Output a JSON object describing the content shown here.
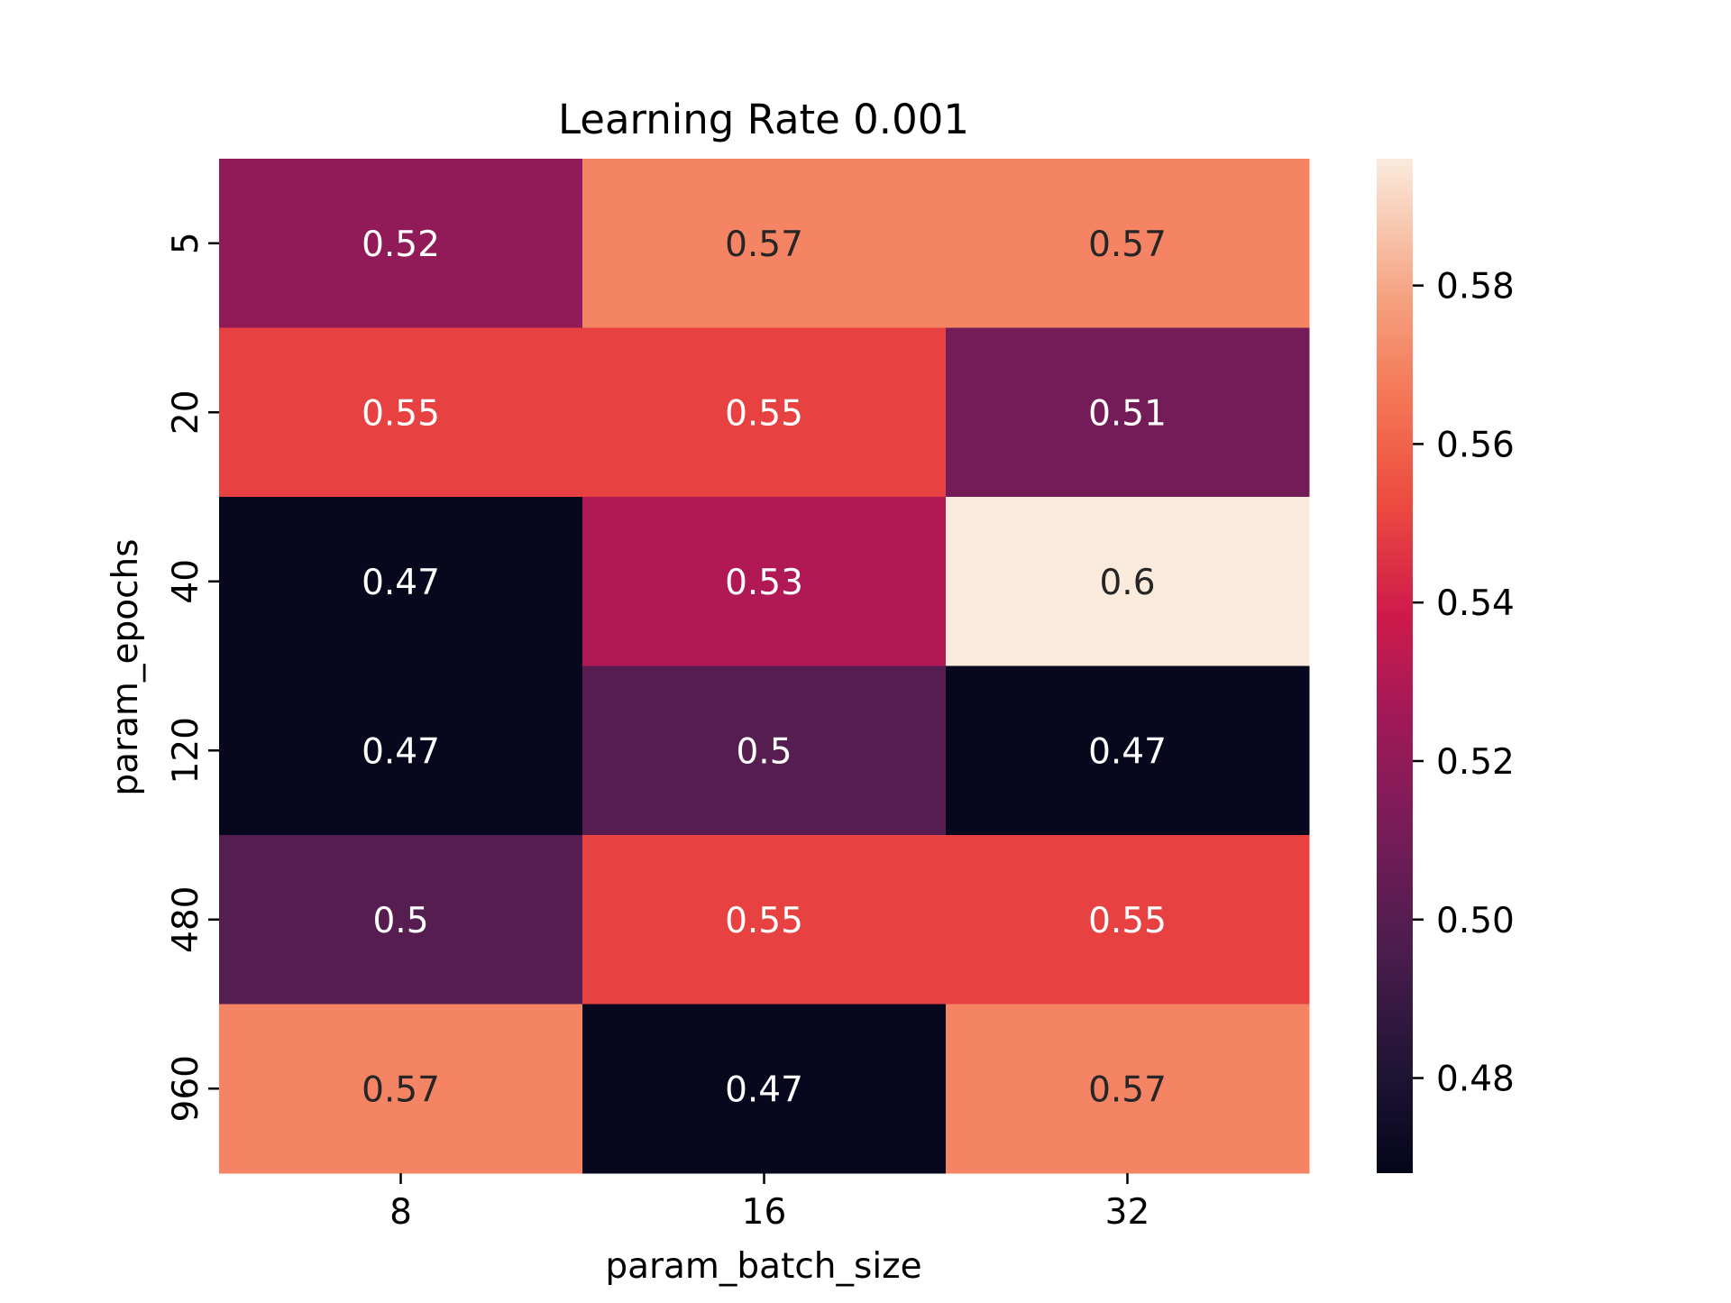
{
  "chart_data": {
    "type": "heatmap",
    "title": "Learning Rate 0.001",
    "xlabel": "param_batch_size",
    "ylabel": "param_epochs",
    "x_categories": [
      "8",
      "16",
      "32"
    ],
    "y_categories": [
      "5",
      "20",
      "40",
      "120",
      "480",
      "960"
    ],
    "values": [
      [
        0.52,
        0.57,
        0.57
      ],
      [
        0.55,
        0.55,
        0.51
      ],
      [
        0.47,
        0.53,
        0.6
      ],
      [
        0.47,
        0.5,
        0.47
      ],
      [
        0.5,
        0.55,
        0.55
      ],
      [
        0.57,
        0.47,
        0.57
      ]
    ],
    "annotations": [
      [
        "0.52",
        "0.57",
        "0.57"
      ],
      [
        "0.55",
        "0.55",
        "0.51"
      ],
      [
        "0.47",
        "0.53",
        "0.6"
      ],
      [
        "0.47",
        "0.5",
        "0.47"
      ],
      [
        "0.5",
        "0.55",
        "0.55"
      ],
      [
        "0.57",
        "0.47",
        "0.57"
      ]
    ],
    "colorbar": {
      "range": [
        0.468,
        0.596
      ],
      "ticks": [
        "0.48",
        "0.50",
        "0.52",
        "0.54",
        "0.56",
        "0.58"
      ],
      "tick_values": [
        0.48,
        0.5,
        0.52,
        0.54,
        0.56,
        0.58
      ]
    },
    "colormap": "rocket",
    "grid": false,
    "legend": "colorbar-right"
  }
}
